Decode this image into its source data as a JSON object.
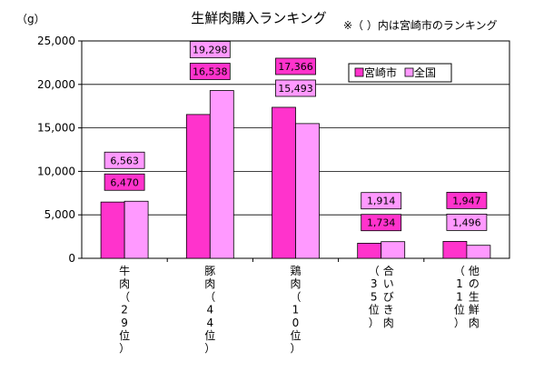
{
  "chart_data": {
    "type": "bar",
    "title": "生鮮肉購入ランキング",
    "unit_label": "（g）",
    "note": "※（ ）内は宮崎市のランキング",
    "ylim": [
      0,
      25000
    ],
    "y_ticks": [
      "0",
      "5,000",
      "10,000",
      "15,000",
      "20,000",
      "25,000"
    ],
    "legend_position": "top-right",
    "categories": [
      "牛肉（29位）",
      "豚肉（44位）",
      "鶏肉（10位）",
      "合いびき肉（35位）",
      "他の生鮮肉（11位）"
    ],
    "category_lines": [
      [
        "牛",
        "肉",
        "（",
        "2",
        "9",
        "位",
        "）"
      ],
      [
        "豚",
        "肉",
        "（",
        "4",
        "4",
        "位",
        "）"
      ],
      [
        "鶏",
        "肉",
        "（",
        "1",
        "0",
        "位",
        "）"
      ],
      [
        [
          "（",
          "3",
          "5",
          "位",
          "）"
        ],
        [
          "合",
          "い",
          "び",
          "き",
          "肉"
        ]
      ],
      [
        [
          "（",
          "1",
          "1",
          "位",
          "）"
        ],
        [
          "他",
          "の",
          "生",
          "鮮",
          "肉"
        ]
      ]
    ],
    "series": [
      {
        "name": "宮崎市",
        "color": "#ff33cc",
        "values": [
          6470,
          16538,
          17366,
          1734,
          1947
        ],
        "labels": [
          "6,470",
          "16,538",
          "17,366",
          "1,734",
          "1,947"
        ]
      },
      {
        "name": "全国",
        "color": "#ff99ff",
        "values": [
          6563,
          19298,
          15493,
          1914,
          1496
        ],
        "labels": [
          "6,563",
          "19,298",
          "15,493",
          "1,914",
          "1,496"
        ]
      }
    ]
  }
}
